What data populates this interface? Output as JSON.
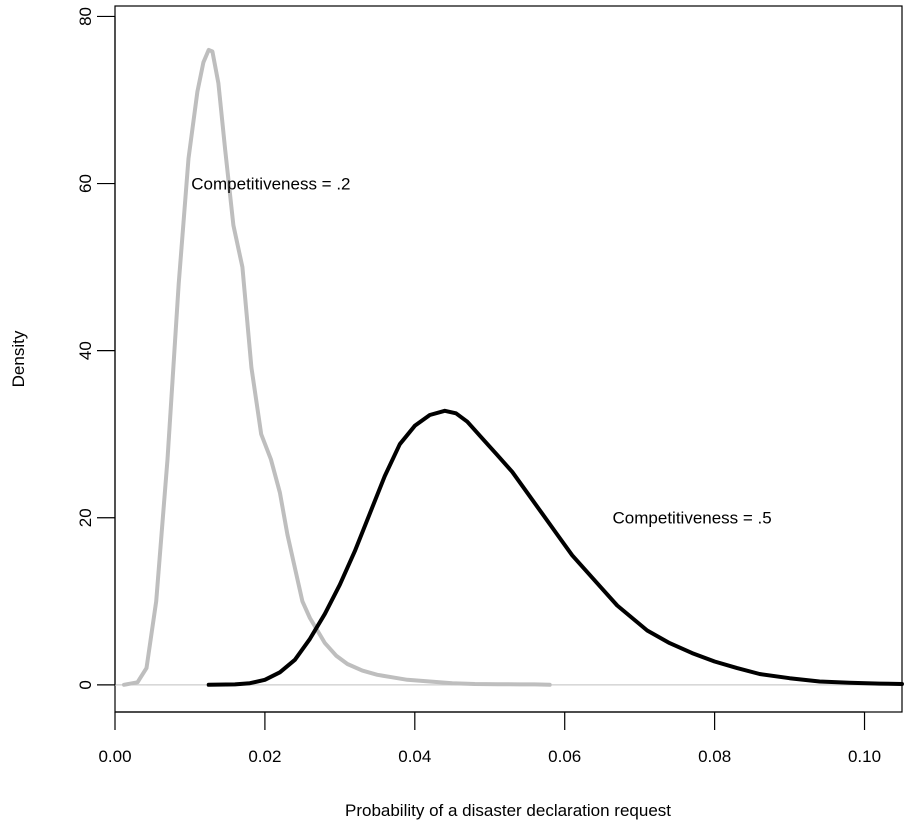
{
  "chart_data": {
    "type": "line",
    "title": "",
    "xlabel": "Probability of a disaster declaration request",
    "ylabel": "Density",
    "xlim": [
      0.0,
      0.105
    ],
    "ylim": [
      -3.25,
      81.25
    ],
    "x_ticks": [
      0.0,
      0.02,
      0.04,
      0.06,
      0.08,
      0.1
    ],
    "x_tick_labels": [
      "0.00",
      "0.02",
      "0.04",
      "0.06",
      "0.08",
      "0.10"
    ],
    "y_ticks": [
      0,
      20,
      40,
      60,
      80
    ],
    "y_tick_labels": [
      "0",
      "20",
      "40",
      "60",
      "80"
    ],
    "grid": false,
    "reference_line": {
      "y": 0,
      "color": "#cccccc"
    },
    "series": [
      {
        "color": "#bebebe",
        "x": [
          0.0012,
          0.003,
          0.0042,
          0.0055,
          0.007,
          0.0085,
          0.0098,
          0.011,
          0.0118,
          0.0125,
          0.013,
          0.0138,
          0.0147,
          0.0158,
          0.017,
          0.0182,
          0.0195,
          0.0208,
          0.022,
          0.023,
          0.024,
          0.025,
          0.026,
          0.027,
          0.028,
          0.0295,
          0.031,
          0.033,
          0.035,
          0.037,
          0.039,
          0.042,
          0.045,
          0.048,
          0.051,
          0.054,
          0.056,
          0.058
        ],
        "y": [
          0.0,
          0.3,
          2.0,
          10.0,
          27.0,
          48.0,
          63.0,
          71.0,
          74.5,
          76.0,
          75.8,
          72.0,
          64.0,
          55.0,
          50.0,
          38.0,
          30.0,
          27.0,
          23.0,
          18.0,
          14.0,
          10.0,
          8.0,
          6.5,
          5.0,
          3.5,
          2.5,
          1.7,
          1.2,
          0.9,
          0.6,
          0.4,
          0.2,
          0.1,
          0.08,
          0.05,
          0.05,
          0.0
        ]
      },
      {
        "color": "#000000",
        "x": [
          0.0125,
          0.016,
          0.018,
          0.02,
          0.022,
          0.024,
          0.026,
          0.028,
          0.03,
          0.032,
          0.034,
          0.036,
          0.038,
          0.04,
          0.042,
          0.044,
          0.0455,
          0.047,
          0.049,
          0.051,
          0.053,
          0.055,
          0.057,
          0.059,
          0.061,
          0.063,
          0.065,
          0.067,
          0.069,
          0.071,
          0.074,
          0.077,
          0.08,
          0.083,
          0.086,
          0.09,
          0.094,
          0.098,
          0.102,
          0.105
        ],
        "y": [
          0.0,
          0.05,
          0.2,
          0.6,
          1.5,
          3.0,
          5.5,
          8.5,
          12.0,
          16.0,
          20.5,
          25.0,
          28.8,
          31.0,
          32.3,
          32.8,
          32.5,
          31.5,
          29.5,
          27.5,
          25.5,
          23.0,
          20.5,
          18.0,
          15.5,
          13.5,
          11.5,
          9.5,
          8.0,
          6.5,
          5.0,
          3.8,
          2.8,
          2.0,
          1.3,
          0.8,
          0.4,
          0.25,
          0.15,
          0.1
        ]
      }
    ],
    "annotations": [
      {
        "text": "Competitiveness = .2",
        "x": 0.0208,
        "y": 60
      },
      {
        "text": "Competitiveness = .5",
        "x": 0.077,
        "y": 20
      }
    ]
  }
}
